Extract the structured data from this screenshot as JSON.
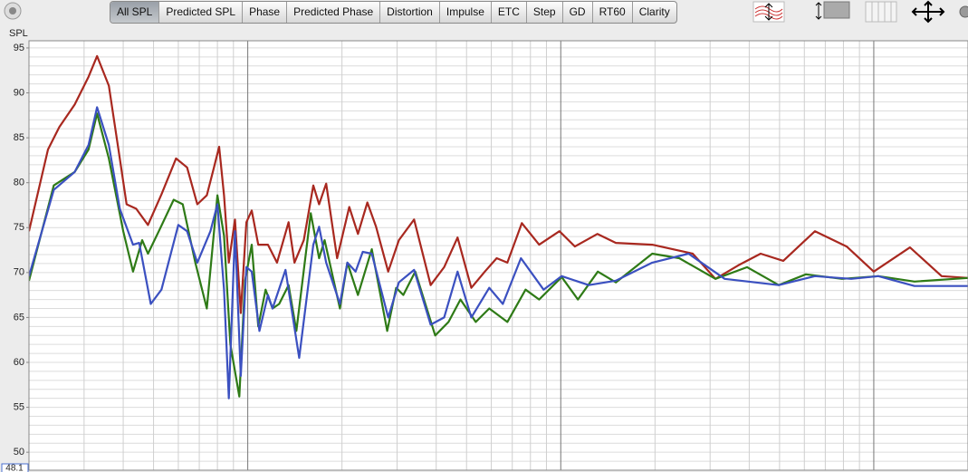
{
  "toolbar": {
    "tabs": [
      "All SPL",
      "Predicted SPL",
      "Phase",
      "Predicted Phase",
      "Distortion",
      "Impulse",
      "ETC",
      "Step",
      "GD",
      "RT60",
      "Clarity"
    ],
    "active": 0
  },
  "chart_data": {
    "type": "line",
    "y_label": "SPL",
    "cursor_value": "48.1",
    "xscale": "log",
    "xlim": [
      20,
      20000
    ],
    "ylim": [
      48,
      95.8
    ],
    "yticks": [
      50,
      55,
      60,
      65,
      70,
      75,
      80,
      85,
      90,
      95
    ],
    "ygrid": [
      49,
      50,
      51,
      52,
      53,
      54,
      55,
      56,
      57,
      58,
      59,
      60,
      61,
      62,
      63,
      64,
      65,
      66,
      67,
      68,
      69,
      70,
      71,
      72,
      73,
      74,
      75,
      76,
      77,
      78,
      79,
      80,
      81,
      82,
      83,
      84,
      85,
      86,
      87,
      88,
      89,
      90,
      91,
      92,
      93,
      94,
      95
    ],
    "xgrid": [
      30,
      40,
      50,
      60,
      70,
      80,
      90,
      200,
      300,
      400,
      500,
      600,
      700,
      800,
      900,
      2000,
      3000,
      4000,
      5000,
      6000,
      7000,
      8000,
      9000,
      20000
    ],
    "xgrid_major": [
      100,
      1000,
      10000
    ],
    "series": [
      {
        "color": "#a8281f",
        "x": [
          20,
          23,
          25,
          28,
          31,
          33,
          36,
          39,
          41,
          44,
          48,
          53,
          59,
          64,
          69,
          74,
          78,
          81,
          84,
          87,
          91,
          95,
          99,
          103,
          108,
          116,
          124,
          135,
          141,
          151,
          162,
          169,
          178,
          193,
          211,
          225,
          241,
          257,
          281,
          304,
          340,
          384,
          424,
          468,
          518,
          572,
          624,
          675,
          751,
          853,
          990,
          1110,
          1310,
          1500,
          1960,
          2640,
          3120,
          3690,
          4350,
          5140,
          6490,
          8190,
          10000,
          13050,
          16480,
          20000
        ],
        "values": [
          74.6,
          83.7,
          86.2,
          88.7,
          91.8,
          94.1,
          90.8,
          82.7,
          77.6,
          77.1,
          75.3,
          78.7,
          82.7,
          81.7,
          77.6,
          78.6,
          81.7,
          84.0,
          78.6,
          71.1,
          75.9,
          65.5,
          75.6,
          76.9,
          73.1,
          73.1,
          71.1,
          75.6,
          71.1,
          73.6,
          79.7,
          77.6,
          79.9,
          71.6,
          77.3,
          74.3,
          77.8,
          75.1,
          70.1,
          73.6,
          75.9,
          68.6,
          70.6,
          73.9,
          68.3,
          70.1,
          71.6,
          71.1,
          75.5,
          73.1,
          74.6,
          72.9,
          74.3,
          73.3,
          73.1,
          72.1,
          69.3,
          70.8,
          72.1,
          71.3,
          74.6,
          72.9,
          70.1,
          72.8,
          69.6,
          69.4
        ]
      },
      {
        "color": "#2e7a16",
        "x": [
          20,
          24,
          28,
          31,
          33,
          36,
          40,
          43,
          46,
          48,
          52,
          58,
          62,
          68,
          74,
          80,
          84,
          88,
          94,
          98,
          103,
          108,
          114,
          120,
          126,
          135,
          143,
          159,
          169,
          176,
          197,
          208,
          225,
          249,
          279,
          298,
          314,
          343,
          397,
          438,
          478,
          535,
          591,
          675,
          772,
          853,
          1007,
          1134,
          1313,
          1500,
          1960,
          2390,
          3120,
          3940,
          4970,
          6070,
          7920,
          10340,
          13490,
          20000
        ],
        "values": [
          69.1,
          79.7,
          81.2,
          83.7,
          87.7,
          82.7,
          74.6,
          70.1,
          73.6,
          72.1,
          74.6,
          78.1,
          77.6,
          71.1,
          66.0,
          78.6,
          74.1,
          62.0,
          56.2,
          69.1,
          73.1,
          64.0,
          68.1,
          66.0,
          66.5,
          68.6,
          63.5,
          76.6,
          71.6,
          73.6,
          66.0,
          71.1,
          67.5,
          72.6,
          63.5,
          68.3,
          67.5,
          70.1,
          63.0,
          64.5,
          67.0,
          64.5,
          66.0,
          64.5,
          68.1,
          67.0,
          69.5,
          67.0,
          70.1,
          68.9,
          72.1,
          71.6,
          69.3,
          70.6,
          68.6,
          69.8,
          69.3,
          69.6,
          69.0,
          69.4
        ]
      },
      {
        "color": "#3b50c0",
        "x": [
          20,
          24,
          28,
          31,
          33,
          36,
          39,
          43,
          45,
          49,
          53,
          60,
          64,
          69,
          76,
          80,
          84,
          87,
          91,
          95,
          99,
          103,
          109,
          116,
          120,
          132,
          146,
          162,
          169,
          178,
          197,
          208,
          221,
          233,
          249,
          281,
          304,
          340,
          384,
          424,
          468,
          518,
          591,
          653,
          746,
          881,
          1007,
          1229,
          1500,
          1960,
          2560,
          3340,
          4970,
          6490,
          8470,
          10340,
          13490,
          20000
        ],
        "values": [
          69.6,
          79.2,
          81.2,
          84.2,
          88.4,
          84.2,
          77.1,
          73.1,
          73.3,
          66.5,
          68.1,
          75.3,
          74.6,
          71.1,
          74.6,
          77.6,
          68.1,
          56.0,
          74.6,
          58.5,
          70.6,
          70.1,
          63.5,
          67.5,
          66.0,
          70.3,
          60.5,
          73.1,
          75.1,
          71.1,
          66.5,
          71.1,
          70.1,
          72.3,
          72.1,
          65.0,
          68.9,
          70.3,
          64.2,
          65.0,
          70.1,
          65.0,
          68.3,
          66.5,
          71.6,
          68.1,
          69.6,
          68.6,
          69.1,
          71.1,
          72.1,
          69.3,
          68.6,
          69.6,
          69.3,
          69.6,
          68.5,
          68.5
        ]
      }
    ]
  }
}
